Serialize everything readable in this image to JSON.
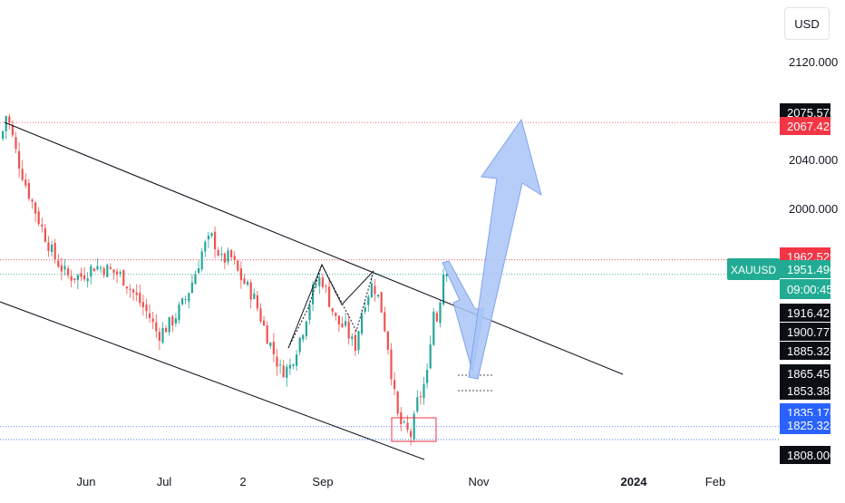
{
  "currency": "USD",
  "symbol": "XAUUSD",
  "countdown": "09:00:45",
  "colors": {
    "up": "#26a69a",
    "down": "#ef5350",
    "arrow": "#a9c4f7",
    "arrow_stroke": "#7ea3ee",
    "green_label": "#22ab94",
    "red_label": "#f23645",
    "blue_label": "#2962ff",
    "black_label": "#0c0e15"
  },
  "chart_data": {
    "type": "candlestick",
    "ylim": [
      1808,
      2136
    ],
    "x_tick_labels": [
      "Jun",
      "Jul",
      "2",
      "Sep",
      "Nov",
      "2024",
      "Feb"
    ],
    "y_tick_labels": [
      "2120.000",
      "2040.000",
      "2000.000"
    ],
    "price_labels": [
      {
        "text": "2075.576",
        "style": "black",
        "value": 2075.576
      },
      {
        "text": "2067.428",
        "style": "red",
        "value": 2067.428
      },
      {
        "text": "1962.529",
        "style": "red",
        "value": 1962.529
      },
      {
        "text": "1951.490",
        "style": "green",
        "value": 1951.49
      },
      {
        "text": "1916.421",
        "style": "black",
        "value": 1916.421
      },
      {
        "text": "1900.777",
        "style": "black",
        "value": 1900.777
      },
      {
        "text": "1885.324",
        "style": "black",
        "value": 1885.324
      },
      {
        "text": "1865.451",
        "style": "black",
        "value": 1865.451
      },
      {
        "text": "1853.383",
        "style": "black",
        "value": 1853.383
      },
      {
        "text": "1835.176",
        "style": "blue",
        "value": 1835.176
      },
      {
        "text": "1825.328",
        "style": "blue",
        "value": 1825.328
      },
      {
        "text": "1808.000",
        "style": "black",
        "value": 1808.0
      }
    ],
    "horizontal_lines": [
      {
        "value": 2067.428,
        "color": "#f23645"
      },
      {
        "value": 1962.529,
        "color": "#f23645"
      },
      {
        "value": 1951.49,
        "color": "#22ab94"
      },
      {
        "value": 1835.176,
        "color": "#2962ff"
      },
      {
        "value": 1825.328,
        "color": "#2962ff"
      }
    ],
    "anchors": [
      [
        0,
        2048
      ],
      [
        8,
        2075
      ],
      [
        20,
        2040
      ],
      [
        30,
        2018
      ],
      [
        45,
        1990
      ],
      [
        60,
        1965
      ],
      [
        75,
        1950
      ],
      [
        90,
        1950
      ],
      [
        105,
        1958
      ],
      [
        120,
        1955
      ],
      [
        135,
        1950
      ],
      [
        150,
        1935
      ],
      [
        165,
        1920
      ],
      [
        175,
        1905
      ],
      [
        190,
        1915
      ],
      [
        205,
        1932
      ],
      [
        215,
        1950
      ],
      [
        225,
        1972
      ],
      [
        235,
        1980
      ],
      [
        245,
        1962
      ],
      [
        255,
        1965
      ],
      [
        265,
        1950
      ],
      [
        280,
        1935
      ],
      [
        295,
        1905
      ],
      [
        310,
        1878
      ],
      [
        320,
        1880
      ],
      [
        335,
        1910
      ],
      [
        345,
        1938
      ],
      [
        355,
        1950
      ],
      [
        362,
        1935
      ],
      [
        372,
        1915
      ],
      [
        382,
        1910
      ],
      [
        392,
        1895
      ],
      [
        402,
        1930
      ],
      [
        412,
        1945
      ],
      [
        420,
        1930
      ],
      [
        428,
        1900
      ],
      [
        435,
        1862
      ],
      [
        440,
        1840
      ],
      [
        448,
        1832
      ],
      [
        455,
        1828
      ],
      [
        460,
        1852
      ],
      [
        466,
        1862
      ],
      [
        472,
        1875
      ],
      [
        478,
        1925
      ],
      [
        484,
        1915
      ],
      [
        488,
        1950
      ],
      [
        492,
        1957
      ]
    ]
  }
}
